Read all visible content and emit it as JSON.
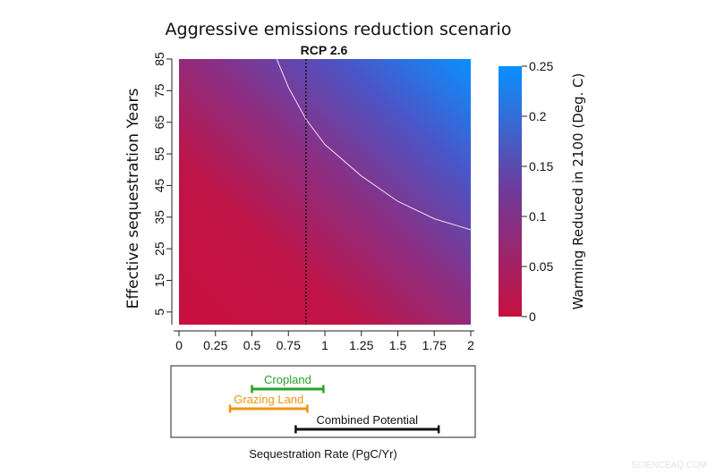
{
  "chart_data": [
    {
      "type": "heatmap",
      "title": "Aggressive emissions reduction scenario",
      "subtitle": "RCP 2.6",
      "xlabel": "",
      "ylabel": "Effective sequestration Years",
      "x_ticks": [
        "0",
        "0.25",
        "0.5",
        "0.75",
        "1",
        "1.25",
        "1.5",
        "1.75",
        "2"
      ],
      "y_ticks": [
        "5",
        "15",
        "25",
        "35",
        "45",
        "55",
        "65",
        "75",
        "85"
      ],
      "xlim": [
        0,
        2
      ],
      "ylim": [
        1,
        85
      ],
      "colorbar": {
        "label": "Warming Reduced in 2100 (Deg. C)",
        "ticks": [
          "0",
          "0.05",
          "0.1",
          "0.15",
          "0.2",
          "0.25"
        ],
        "range": [
          0,
          0.25
        ],
        "color_low": "#c8103e",
        "color_mid": "#6f3a9a",
        "color_high": "#0a90ff"
      },
      "vertical_reference_line": {
        "x": 0.87,
        "style": "dotted",
        "color": "#111111"
      },
      "contour": {
        "color": "#ffffff",
        "points": [
          [
            0.67,
            85
          ],
          [
            0.75,
            76
          ],
          [
            0.87,
            66
          ],
          [
            1.0,
            58
          ],
          [
            1.25,
            48
          ],
          [
            1.5,
            40
          ],
          [
            1.75,
            34.5
          ],
          [
            2.0,
            31
          ]
        ]
      }
    },
    {
      "type": "range",
      "xlabel": "Sequestration Rate (PgC/Yr)",
      "xlim": [
        0,
        2
      ],
      "ranges": [
        {
          "name": "Cropland",
          "low": 0.5,
          "high": 0.99,
          "color": "#2aa02a"
        },
        {
          "name": "Grazing Land",
          "low": 0.35,
          "high": 0.88,
          "color": "#f0950e"
        },
        {
          "name": "Combined Potential",
          "low": 0.8,
          "high": 1.78,
          "color": "#111111"
        }
      ]
    }
  ],
  "watermark": "SCIENCEAQ.COM"
}
